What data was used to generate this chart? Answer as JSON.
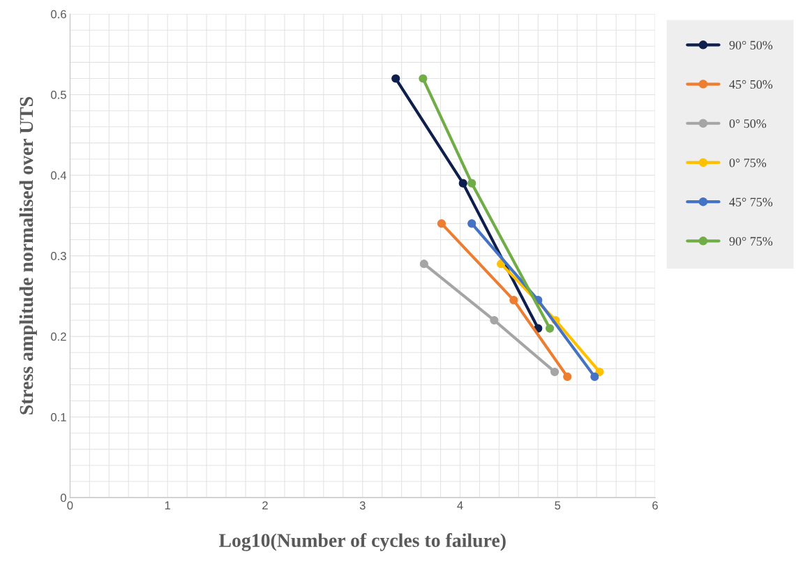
{
  "chart_data": {
    "type": "line",
    "xlabel": "Log10(Number of cycles to failure)",
    "ylabel": "Stress amplitude normalised over UTS",
    "series": [
      {
        "name": "90° 50%",
        "color": "#0e1f4d",
        "x": [
          3.34,
          4.03,
          4.8
        ],
        "values": [
          0.52,
          0.39,
          0.21
        ]
      },
      {
        "name": "45° 50%",
        "color": "#ed7d31",
        "x": [
          3.81,
          4.55,
          5.1
        ],
        "values": [
          0.34,
          0.245,
          0.15
        ]
      },
      {
        "name": "0° 50%",
        "color": "#a5a5a5",
        "x": [
          3.63,
          4.35,
          4.97
        ],
        "values": [
          0.29,
          0.22,
          0.156
        ]
      },
      {
        "name": "0° 75%",
        "color": "#ffc000",
        "x": [
          4.42,
          4.98,
          5.43
        ],
        "values": [
          0.29,
          0.22,
          0.156
        ]
      },
      {
        "name": "45° 75%",
        "color": "#4472c4",
        "x": [
          4.12,
          4.8,
          5.38
        ],
        "values": [
          0.34,
          0.245,
          0.15
        ]
      },
      {
        "name": "90° 75%",
        "color": "#70ad47",
        "x": [
          3.62,
          4.12,
          4.92
        ],
        "values": [
          0.52,
          0.39,
          0.21
        ]
      }
    ],
    "xlim": [
      0,
      6
    ],
    "xticks": [
      0,
      1,
      2,
      3,
      4,
      5,
      6
    ],
    "ylim": [
      0,
      0.6
    ],
    "yticks": [
      0,
      0.1,
      0.2,
      0.3,
      0.4,
      0.5,
      0.6
    ],
    "grid": true,
    "legend": "right",
    "marker": "circle",
    "line_style": "solid"
  }
}
